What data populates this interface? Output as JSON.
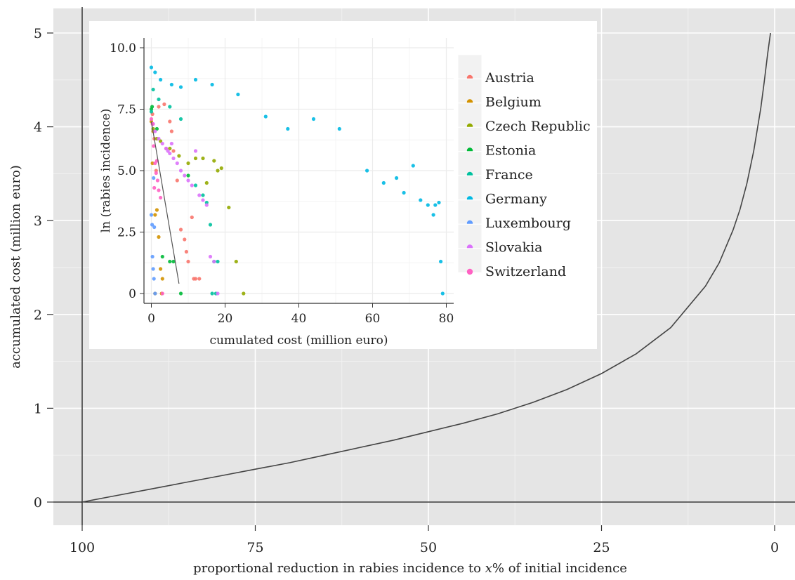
{
  "chart_data": [
    {
      "type": "line",
      "title": "",
      "xlabel": "proportional reduction in rabies incidence to x% of initial incidence",
      "xlabel_parts": [
        "proportional reduction in rabies incidence to ",
        "x",
        "% of initial incidence"
      ],
      "ylabel": "accumulated cost (million euro)",
      "x_reversed": true,
      "xlim": [
        0,
        100
      ],
      "ylim": [
        0,
        5
      ],
      "xticks": [
        100,
        75,
        50,
        25,
        0
      ],
      "yticks": [
        0,
        1,
        2,
        3,
        4,
        5
      ],
      "grid": true,
      "series": [
        {
          "x": [
            100,
            95,
            90,
            85,
            80,
            75,
            70,
            65,
            60,
            55,
            50,
            45,
            40,
            35,
            30,
            25,
            20,
            15,
            10,
            8,
            6,
            5,
            4,
            3,
            2,
            1.5,
            1,
            0.6
          ],
          "y": [
            0,
            0.07,
            0.14,
            0.21,
            0.28,
            0.35,
            0.42,
            0.5,
            0.58,
            0.66,
            0.75,
            0.84,
            0.94,
            1.06,
            1.2,
            1.37,
            1.58,
            1.86,
            2.3,
            2.55,
            2.9,
            3.12,
            3.4,
            3.75,
            4.2,
            4.48,
            4.78,
            5.0
          ]
        }
      ]
    },
    {
      "type": "scatter",
      "title": "",
      "xlabel": "cumulated cost (million euro)",
      "ylabel": "ln (rabies incidence)",
      "xlim": [
        -2,
        82
      ],
      "ylim": [
        -0.4,
        10.4
      ],
      "xticks": [
        0,
        20,
        40,
        60,
        80
      ],
      "yticks": [
        0,
        2.5,
        5.0,
        7.5,
        10.0
      ],
      "ytick_labels": [
        "0",
        "2.5",
        "5.0",
        "7.5",
        "10.0"
      ],
      "grid": true,
      "legend_position": "right",
      "series": [
        {
          "name": "Austria",
          "color": "#F8766D",
          "x": [
            0.3,
            0.8,
            1.3,
            2,
            3.5,
            4,
            5,
            5.5,
            6,
            7,
            8,
            9,
            9.5,
            10,
            11,
            11.5,
            12,
            13
          ],
          "y": [
            7.3,
            6.3,
            5.0,
            7.6,
            7.7,
            5.9,
            7.0,
            6.6,
            5.8,
            4.6,
            2.6,
            2.2,
            1.7,
            1.3,
            3.1,
            0.6,
            0.6,
            0.6
          ]
        },
        {
          "name": "Belgium",
          "color": "#D39200",
          "x": [
            0,
            0.5,
            1,
            1.5,
            2,
            2.5,
            3,
            1,
            0.3,
            2.8
          ],
          "y": [
            7.0,
            6.6,
            3.2,
            3.4,
            2.3,
            1.0,
            0.6,
            0.0,
            5.3,
            0.0
          ]
        },
        {
          "name": "Czech Republic",
          "color": "#93AA00",
          "x": [
            0.5,
            1.5,
            2.5,
            5,
            7.5,
            10,
            12,
            14,
            15,
            17,
            19,
            21,
            23,
            25,
            18
          ],
          "y": [
            6.7,
            6.3,
            6.2,
            5.9,
            5.6,
            5.3,
            5.5,
            5.5,
            4.5,
            5.4,
            5.1,
            3.5,
            1.3,
            0.0,
            5.0
          ]
        },
        {
          "name": "Estonia",
          "color": "#00BA38",
          "x": [
            0,
            1.5,
            3,
            5,
            6,
            8,
            10,
            0.2
          ],
          "y": [
            7.5,
            6.7,
            1.5,
            1.3,
            1.3,
            0.0,
            4.8,
            7.6
          ]
        },
        {
          "name": "France",
          "color": "#00C19F",
          "x": [
            0,
            0.5,
            2,
            5,
            8,
            12,
            14,
            15,
            16,
            17,
            18,
            16.5,
            17.5
          ],
          "y": [
            7.4,
            8.3,
            7.9,
            7.6,
            7.1,
            4.4,
            4.0,
            3.7,
            2.8,
            1.3,
            1.3,
            0.0,
            0.0
          ]
        },
        {
          "name": "Germany",
          "color": "#00B9E3",
          "x": [
            0,
            1,
            2.5,
            5.5,
            8,
            12,
            16.5,
            23.5,
            31,
            37,
            44,
            51,
            58.5,
            63,
            66.5,
            68.5,
            71,
            73,
            75,
            76.5,
            77,
            78,
            78.5,
            79
          ],
          "y": [
            9.2,
            9.0,
            8.7,
            8.5,
            8.4,
            8.7,
            8.5,
            8.1,
            7.2,
            6.7,
            7.1,
            6.7,
            5.0,
            4.5,
            4.7,
            4.1,
            5.2,
            3.8,
            3.6,
            3.2,
            3.6,
            3.7,
            1.3,
            0.0
          ]
        },
        {
          "name": "Luxembourg",
          "color": "#619CFF",
          "x": [
            0,
            0.2,
            0.3,
            0.5,
            0.7,
            1,
            0.6,
            0.8
          ],
          "y": [
            3.2,
            2.8,
            1.5,
            1.0,
            0.6,
            0.0,
            4.7,
            2.7
          ]
        },
        {
          "name": "Slovakia",
          "color": "#DB72FB",
          "x": [
            0.5,
            1,
            2,
            3,
            4,
            5,
            6,
            7,
            8,
            9,
            10,
            11,
            12,
            13,
            14,
            15,
            16,
            17,
            18,
            4.5,
            5.5
          ],
          "y": [
            6.9,
            6.6,
            6.3,
            6.1,
            5.9,
            5.7,
            5.5,
            5.3,
            5.0,
            4.8,
            4.6,
            4.4,
            5.8,
            4.0,
            3.8,
            3.6,
            1.5,
            1.3,
            0.0,
            5.8,
            6.1
          ]
        },
        {
          "name": "Switzerland",
          "color": "#FF61C3",
          "x": [
            0,
            0.3,
            0.6,
            1,
            1.3,
            1.7,
            2,
            2.5,
            3,
            0.8,
            1.5
          ],
          "y": [
            7.1,
            6.9,
            6.0,
            5.3,
            4.9,
            4.6,
            4.2,
            3.9,
            0.0,
            4.3,
            5.4
          ]
        }
      ],
      "trend_line": {
        "x": [
          0,
          7.5
        ],
        "y": [
          7.0,
          0.4
        ]
      }
    }
  ]
}
